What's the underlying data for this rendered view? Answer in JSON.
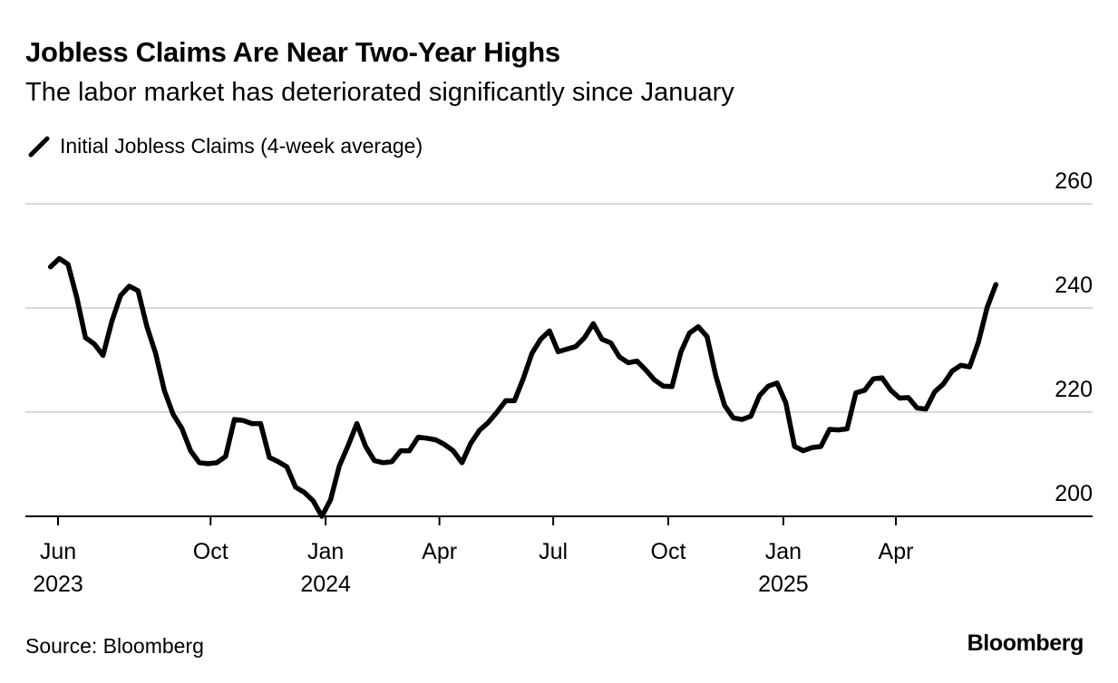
{
  "header": {
    "title": "Jobless Claims Are Near Two-Year Highs",
    "subtitle": "The labor market has deteriorated significantly since January"
  },
  "legend": {
    "label": "Initial Jobless Claims (4-week average)",
    "icon": "line-swatch-icon"
  },
  "footer": {
    "source": "Source: Bloomberg",
    "brand": "Bloomberg"
  },
  "colors": {
    "line": "#000000",
    "grid": "#d9d9d9",
    "axis": "#000000",
    "background": "#ffffff"
  },
  "chart_data": {
    "type": "line",
    "title": "Jobless Claims Are Near Two-Year Highs",
    "subtitle": "The labor market has deteriorated significantly since January",
    "xlabel": "",
    "ylabel": "",
    "ylim": [
      200,
      260
    ],
    "yticks": [
      200,
      220,
      240,
      260
    ],
    "y_axis_side": "right",
    "grid": true,
    "legend_placement": "top-left",
    "x_ticks": [
      {
        "date": "2023-06-01",
        "label": "Jun",
        "year": "2023"
      },
      {
        "date": "2023-10-01",
        "label": "Oct",
        "year": ""
      },
      {
        "date": "2024-01-01",
        "label": "Jan",
        "year": "2024"
      },
      {
        "date": "2024-04-01",
        "label": "Apr",
        "year": ""
      },
      {
        "date": "2024-07-01",
        "label": "Jul",
        "year": ""
      },
      {
        "date": "2024-10-01",
        "label": "Oct",
        "year": ""
      },
      {
        "date": "2025-01-01",
        "label": "Jan",
        "year": "2025"
      },
      {
        "date": "2025-04-01",
        "label": "Apr",
        "year": ""
      }
    ],
    "series": [
      {
        "name": "Initial Jobless Claims (4-week average)",
        "points": [
          [
            "2023-05-26",
            247.9
          ],
          [
            "2023-06-02",
            249.5
          ],
          [
            "2023-06-09",
            248.4
          ],
          [
            "2023-06-16",
            242.0
          ],
          [
            "2023-06-23",
            234.3
          ],
          [
            "2023-06-30",
            233.1
          ],
          [
            "2023-07-07",
            230.9
          ],
          [
            "2023-07-14",
            237.4
          ],
          [
            "2023-07-21",
            242.4
          ],
          [
            "2023-07-28",
            244.2
          ],
          [
            "2023-08-04",
            243.3
          ],
          [
            "2023-08-11",
            236.5
          ],
          [
            "2023-08-18",
            231.3
          ],
          [
            "2023-08-25",
            224.2
          ],
          [
            "2023-09-01",
            219.6
          ],
          [
            "2023-09-08",
            216.9
          ],
          [
            "2023-09-15",
            212.6
          ],
          [
            "2023-09-22",
            210.3
          ],
          [
            "2023-09-29",
            210.1
          ],
          [
            "2023-10-06",
            210.3
          ],
          [
            "2023-10-13",
            211.5
          ],
          [
            "2023-10-20",
            218.6
          ],
          [
            "2023-10-27",
            218.4
          ],
          [
            "2023-11-03",
            217.8
          ],
          [
            "2023-11-10",
            217.8
          ],
          [
            "2023-11-17",
            211.3
          ],
          [
            "2023-11-24",
            210.5
          ],
          [
            "2023-12-01",
            209.5
          ],
          [
            "2023-12-08",
            205.6
          ],
          [
            "2023-12-15",
            204.6
          ],
          [
            "2023-12-22",
            203.0
          ],
          [
            "2023-12-29",
            200.0
          ],
          [
            "2024-01-05",
            203.2
          ],
          [
            "2024-01-12",
            209.7
          ],
          [
            "2024-01-19",
            213.6
          ],
          [
            "2024-01-26",
            217.8
          ],
          [
            "2024-02-02",
            213.4
          ],
          [
            "2024-02-09",
            210.7
          ],
          [
            "2024-02-16",
            210.3
          ],
          [
            "2024-02-23",
            210.5
          ],
          [
            "2024-03-01",
            212.6
          ],
          [
            "2024-03-08",
            212.6
          ],
          [
            "2024-03-15",
            215.2
          ],
          [
            "2024-03-22",
            215.0
          ],
          [
            "2024-03-29",
            214.7
          ],
          [
            "2024-04-05",
            213.8
          ],
          [
            "2024-04-12",
            212.6
          ],
          [
            "2024-04-19",
            210.3
          ],
          [
            "2024-04-26",
            214.0
          ],
          [
            "2024-05-03",
            216.5
          ],
          [
            "2024-05-10",
            218.0
          ],
          [
            "2024-05-17",
            220.0
          ],
          [
            "2024-05-24",
            222.2
          ],
          [
            "2024-05-31",
            222.2
          ],
          [
            "2024-06-07",
            226.4
          ],
          [
            "2024-06-14",
            231.3
          ],
          [
            "2024-06-21",
            234.0
          ],
          [
            "2024-06-28",
            235.6
          ],
          [
            "2024-07-05",
            231.6
          ],
          [
            "2024-07-12",
            232.1
          ],
          [
            "2024-07-19",
            232.6
          ],
          [
            "2024-07-26",
            234.3
          ],
          [
            "2024-08-02",
            237.0
          ],
          [
            "2024-08-09",
            234.0
          ],
          [
            "2024-08-16",
            233.3
          ],
          [
            "2024-08-23",
            230.6
          ],
          [
            "2024-08-30",
            229.5
          ],
          [
            "2024-09-06",
            229.8
          ],
          [
            "2024-09-13",
            228.1
          ],
          [
            "2024-09-20",
            226.2
          ],
          [
            "2024-09-27",
            225.0
          ],
          [
            "2024-10-04",
            224.9
          ],
          [
            "2024-10-11",
            231.5
          ],
          [
            "2024-10-18",
            235.2
          ],
          [
            "2024-10-25",
            236.4
          ],
          [
            "2024-11-01",
            234.5
          ],
          [
            "2024-11-08",
            227.0
          ],
          [
            "2024-11-15",
            221.3
          ],
          [
            "2024-11-22",
            218.9
          ],
          [
            "2024-11-29",
            218.6
          ],
          [
            "2024-12-06",
            219.2
          ],
          [
            "2024-12-13",
            223.2
          ],
          [
            "2024-12-20",
            225.0
          ],
          [
            "2024-12-27",
            225.6
          ],
          [
            "2025-01-03",
            221.8
          ],
          [
            "2025-01-10",
            213.4
          ],
          [
            "2025-01-17",
            212.6
          ],
          [
            "2025-01-24",
            213.2
          ],
          [
            "2025-01-31",
            213.4
          ],
          [
            "2025-02-07",
            216.7
          ],
          [
            "2025-02-14",
            216.6
          ],
          [
            "2025-02-21",
            216.8
          ],
          [
            "2025-02-28",
            223.7
          ],
          [
            "2025-03-07",
            224.2
          ],
          [
            "2025-03-14",
            226.4
          ],
          [
            "2025-03-21",
            226.6
          ],
          [
            "2025-03-28",
            224.2
          ],
          [
            "2025-04-04",
            222.7
          ],
          [
            "2025-04-11",
            222.8
          ],
          [
            "2025-04-18",
            220.8
          ],
          [
            "2025-04-25",
            220.6
          ],
          [
            "2025-05-02",
            223.9
          ],
          [
            "2025-05-09",
            225.4
          ],
          [
            "2025-05-16",
            227.9
          ],
          [
            "2025-05-23",
            229.0
          ],
          [
            "2025-05-30",
            228.7
          ],
          [
            "2025-06-06",
            233.4
          ],
          [
            "2025-06-13",
            240.1
          ],
          [
            "2025-06-20",
            244.5
          ]
        ]
      }
    ]
  }
}
